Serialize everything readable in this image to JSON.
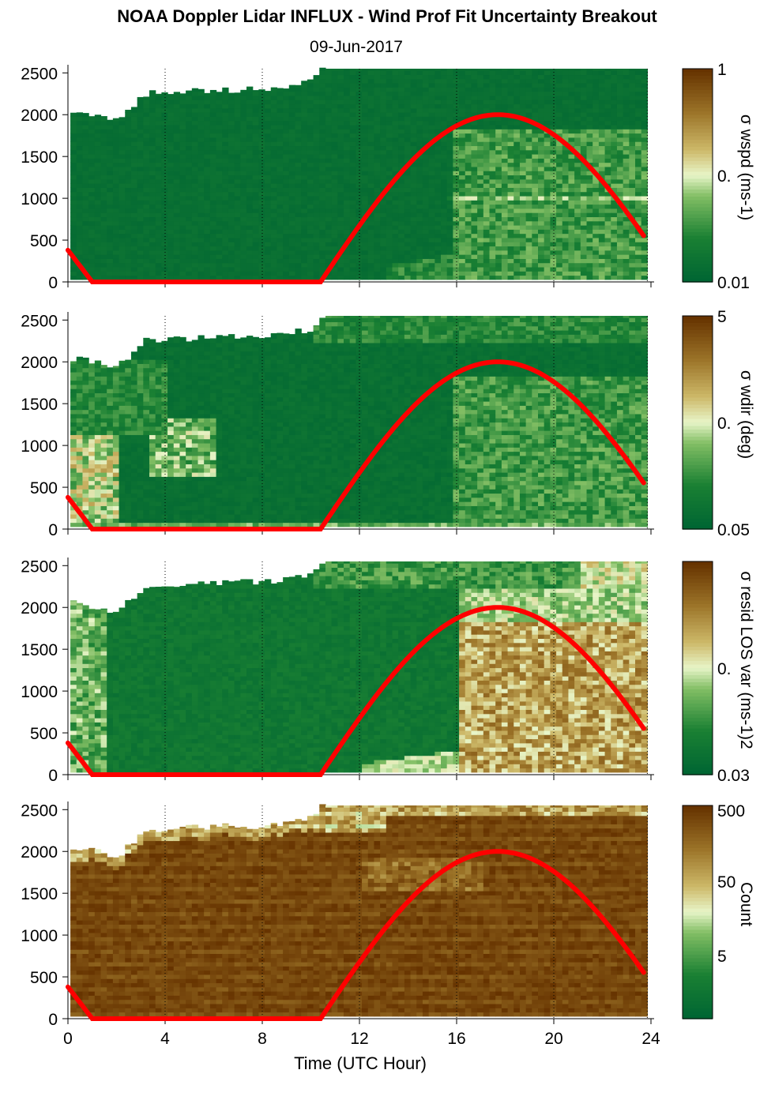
{
  "title": "NOAA Doppler Lidar INFLUX - Wind Prof Fit Uncertainty Breakout",
  "subtitle": "09-Jun-2017",
  "xlabel": "Time (UTC Hour)",
  "x_ticks": [
    "0",
    "4",
    "8",
    "12",
    "16",
    "20",
    "24"
  ],
  "y_ticks": [
    "0",
    "500",
    "1000",
    "1500",
    "2000",
    "2500"
  ],
  "colors": {
    "low": "#006633",
    "mid": "#e6f5c8",
    "high": "#663300",
    "solar_curve": "#ff0000"
  },
  "chart_data": [
    {
      "type": "heatmap",
      "panel": "sigma-wspd",
      "colorbar_label": "σ wspd (ms-1)",
      "colorbar_ticks": [
        "1",
        "0.",
        "0.01"
      ],
      "xlim": [
        0,
        24
      ],
      "ylim": [
        0,
        2550
      ],
      "data_top_m": [
        {
          "t": 0,
          "h": 2050
        },
        {
          "t": 2,
          "h": 1950
        },
        {
          "t": 3,
          "h": 2250
        },
        {
          "t": 6,
          "h": 2300
        },
        {
          "t": 8,
          "h": 2300
        },
        {
          "t": 10,
          "h": 2400
        },
        {
          "t": 10.4,
          "h": 2550
        },
        {
          "t": 24,
          "h": 2550
        }
      ],
      "solar_elevation_curve": {
        "x": [
          0,
          1,
          10.4,
          14,
          17.7,
          20,
          23.8
        ],
        "y": [
          380,
          0,
          0,
          1280,
          2000,
          1750,
          520
        ]
      }
    },
    {
      "type": "heatmap",
      "panel": "sigma-wdir",
      "colorbar_label": "σ wdir (deg)",
      "colorbar_ticks": [
        "5",
        "0.",
        "0.05"
      ],
      "xlim": [
        0,
        24
      ],
      "ylim": [
        0,
        2550
      ],
      "solar_elevation_curve": {
        "x": [
          0,
          1,
          10.4,
          14,
          17.7,
          20,
          23.8
        ],
        "y": [
          380,
          0,
          0,
          1280,
          2000,
          1750,
          520
        ]
      }
    },
    {
      "type": "heatmap",
      "panel": "sigma-resid-los-var",
      "colorbar_label": "σ resid LOS var (ms-1)2",
      "colorbar_ticks": [
        "0.",
        "0.03"
      ],
      "xlim": [
        0,
        24
      ],
      "ylim": [
        0,
        2550
      ],
      "solar_elevation_curve": {
        "x": [
          0,
          1,
          10.4,
          14,
          17.7,
          20,
          23.8
        ],
        "y": [
          380,
          0,
          0,
          1280,
          2000,
          1750,
          520
        ]
      }
    },
    {
      "type": "heatmap",
      "panel": "count",
      "colorbar_label": "Count",
      "colorbar_ticks": [
        "500",
        "50",
        "5"
      ],
      "xlim": [
        0,
        24
      ],
      "ylim": [
        0,
        2550
      ],
      "solar_elevation_curve": {
        "x": [
          0,
          1,
          10.4,
          14,
          17.7,
          20,
          23.8
        ],
        "y": [
          380,
          0,
          0,
          1280,
          2000,
          1750,
          520
        ]
      }
    }
  ]
}
